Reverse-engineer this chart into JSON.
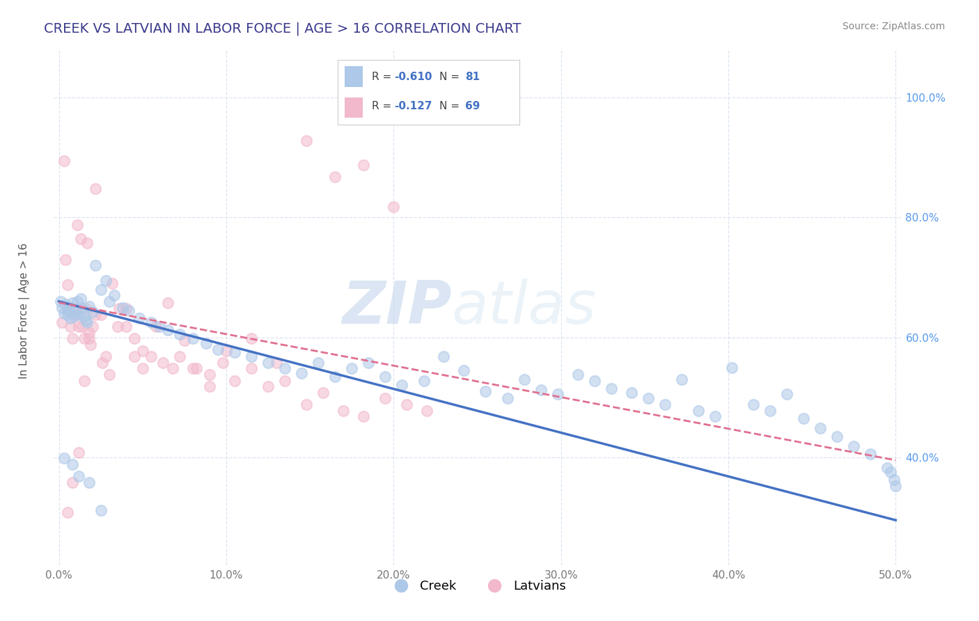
{
  "title": "CREEK VS LATVIAN IN LABOR FORCE | AGE > 16 CORRELATION CHART",
  "source_text": "Source: ZipAtlas.com",
  "ylabel": "In Labor Force | Age > 16",
  "xlim": [
    -0.003,
    0.503
  ],
  "ylim": [
    0.22,
    1.08
  ],
  "xticks": [
    0.0,
    0.1,
    0.2,
    0.3,
    0.4,
    0.5
  ],
  "xticklabels_left": [
    "0.0%",
    "",
    "",
    "",
    "",
    ""
  ],
  "xticklabels_right": [
    "",
    "",
    "",
    "",
    "",
    "50.0%"
  ],
  "xticklabels": [
    "0.0%",
    "10.0%",
    "20.0%",
    "30.0%",
    "40.0%",
    "50.0%"
  ],
  "yticks": [
    0.4,
    0.6,
    0.8,
    1.0
  ],
  "yticklabels": [
    "40.0%",
    "60.0%",
    "80.0%",
    "100.0%"
  ],
  "creek_dot_color": "#adc8e8",
  "latvian_dot_color": "#f2b8cc",
  "creek_line_color": "#4472c4",
  "latvian_line_color": "#e07090",
  "creek_R": -0.61,
  "creek_N": 81,
  "latvian_R": -0.127,
  "latvian_N": 69,
  "title_color": "#3a3a8c",
  "source_color": "#888888",
  "watermark_zip": "ZIP",
  "watermark_atlas": "atlas",
  "bg_color": "#ffffff",
  "grid_color": "#dce4f0",
  "legend_border_color": "#cccccc",
  "tick_label_color": "#5599ee",
  "creek_x": [
    0.001,
    0.002,
    0.003,
    0.004,
    0.005,
    0.005,
    0.006,
    0.007,
    0.008,
    0.009,
    0.01,
    0.011,
    0.012,
    0.013,
    0.014,
    0.015,
    0.016,
    0.017,
    0.018,
    0.02,
    0.022,
    0.025,
    0.028,
    0.03,
    0.033,
    0.038,
    0.042,
    0.048,
    0.055,
    0.06,
    0.065,
    0.072,
    0.08,
    0.088,
    0.095,
    0.105,
    0.115,
    0.125,
    0.135,
    0.145,
    0.155,
    0.165,
    0.175,
    0.185,
    0.195,
    0.205,
    0.218,
    0.23,
    0.242,
    0.255,
    0.268,
    0.278,
    0.288,
    0.298,
    0.31,
    0.32,
    0.33,
    0.342,
    0.352,
    0.362,
    0.372,
    0.382,
    0.392,
    0.402,
    0.415,
    0.425,
    0.435,
    0.445,
    0.455,
    0.465,
    0.475,
    0.485,
    0.495,
    0.497,
    0.499,
    0.5,
    0.003,
    0.008,
    0.012,
    0.018,
    0.025
  ],
  "creek_y": [
    0.66,
    0.65,
    0.64,
    0.655,
    0.645,
    0.638,
    0.648,
    0.632,
    0.658,
    0.635,
    0.642,
    0.66,
    0.638,
    0.665,
    0.648,
    0.635,
    0.628,
    0.625,
    0.652,
    0.642,
    0.72,
    0.68,
    0.695,
    0.66,
    0.67,
    0.65,
    0.645,
    0.632,
    0.625,
    0.618,
    0.612,
    0.605,
    0.598,
    0.59,
    0.58,
    0.575,
    0.568,
    0.558,
    0.548,
    0.54,
    0.558,
    0.535,
    0.548,
    0.558,
    0.535,
    0.52,
    0.528,
    0.568,
    0.545,
    0.51,
    0.498,
    0.53,
    0.512,
    0.505,
    0.538,
    0.528,
    0.515,
    0.508,
    0.498,
    0.488,
    0.53,
    0.478,
    0.468,
    0.55,
    0.488,
    0.478,
    0.505,
    0.465,
    0.448,
    0.435,
    0.418,
    0.405,
    0.382,
    0.375,
    0.362,
    0.352,
    0.398,
    0.388,
    0.368,
    0.358,
    0.312
  ],
  "latvian_x": [
    0.002,
    0.003,
    0.004,
    0.005,
    0.006,
    0.007,
    0.008,
    0.009,
    0.01,
    0.011,
    0.012,
    0.013,
    0.014,
    0.015,
    0.016,
    0.017,
    0.018,
    0.019,
    0.02,
    0.022,
    0.025,
    0.028,
    0.032,
    0.036,
    0.04,
    0.045,
    0.05,
    0.055,
    0.062,
    0.068,
    0.075,
    0.082,
    0.09,
    0.098,
    0.105,
    0.115,
    0.125,
    0.135,
    0.148,
    0.158,
    0.17,
    0.182,
    0.195,
    0.208,
    0.22,
    0.005,
    0.008,
    0.012,
    0.015,
    0.018,
    0.022,
    0.026,
    0.03,
    0.035,
    0.04,
    0.045,
    0.05,
    0.058,
    0.065,
    0.072,
    0.08,
    0.09,
    0.1,
    0.115,
    0.13,
    0.148,
    0.165,
    0.182,
    0.2
  ],
  "latvian_y": [
    0.625,
    0.895,
    0.73,
    0.688,
    0.645,
    0.618,
    0.598,
    0.648,
    0.638,
    0.788,
    0.618,
    0.765,
    0.618,
    0.598,
    0.648,
    0.758,
    0.608,
    0.588,
    0.618,
    0.848,
    0.638,
    0.568,
    0.69,
    0.648,
    0.618,
    0.598,
    0.578,
    0.568,
    0.558,
    0.548,
    0.595,
    0.548,
    0.538,
    0.558,
    0.528,
    0.548,
    0.518,
    0.528,
    0.488,
    0.508,
    0.478,
    0.468,
    0.498,
    0.488,
    0.478,
    0.308,
    0.358,
    0.408,
    0.528,
    0.598,
    0.638,
    0.558,
    0.538,
    0.618,
    0.648,
    0.568,
    0.548,
    0.618,
    0.658,
    0.568,
    0.548,
    0.518,
    0.578,
    0.598,
    0.558,
    0.928,
    0.868,
    0.888,
    0.818
  ],
  "creek_line_x0": 0.0,
  "creek_line_y0": 0.66,
  "creek_line_x1": 0.5,
  "creek_line_y1": 0.295,
  "latvian_line_x0": 0.0,
  "latvian_line_y0": 0.658,
  "latvian_line_x1": 0.5,
  "latvian_line_y1": 0.395
}
